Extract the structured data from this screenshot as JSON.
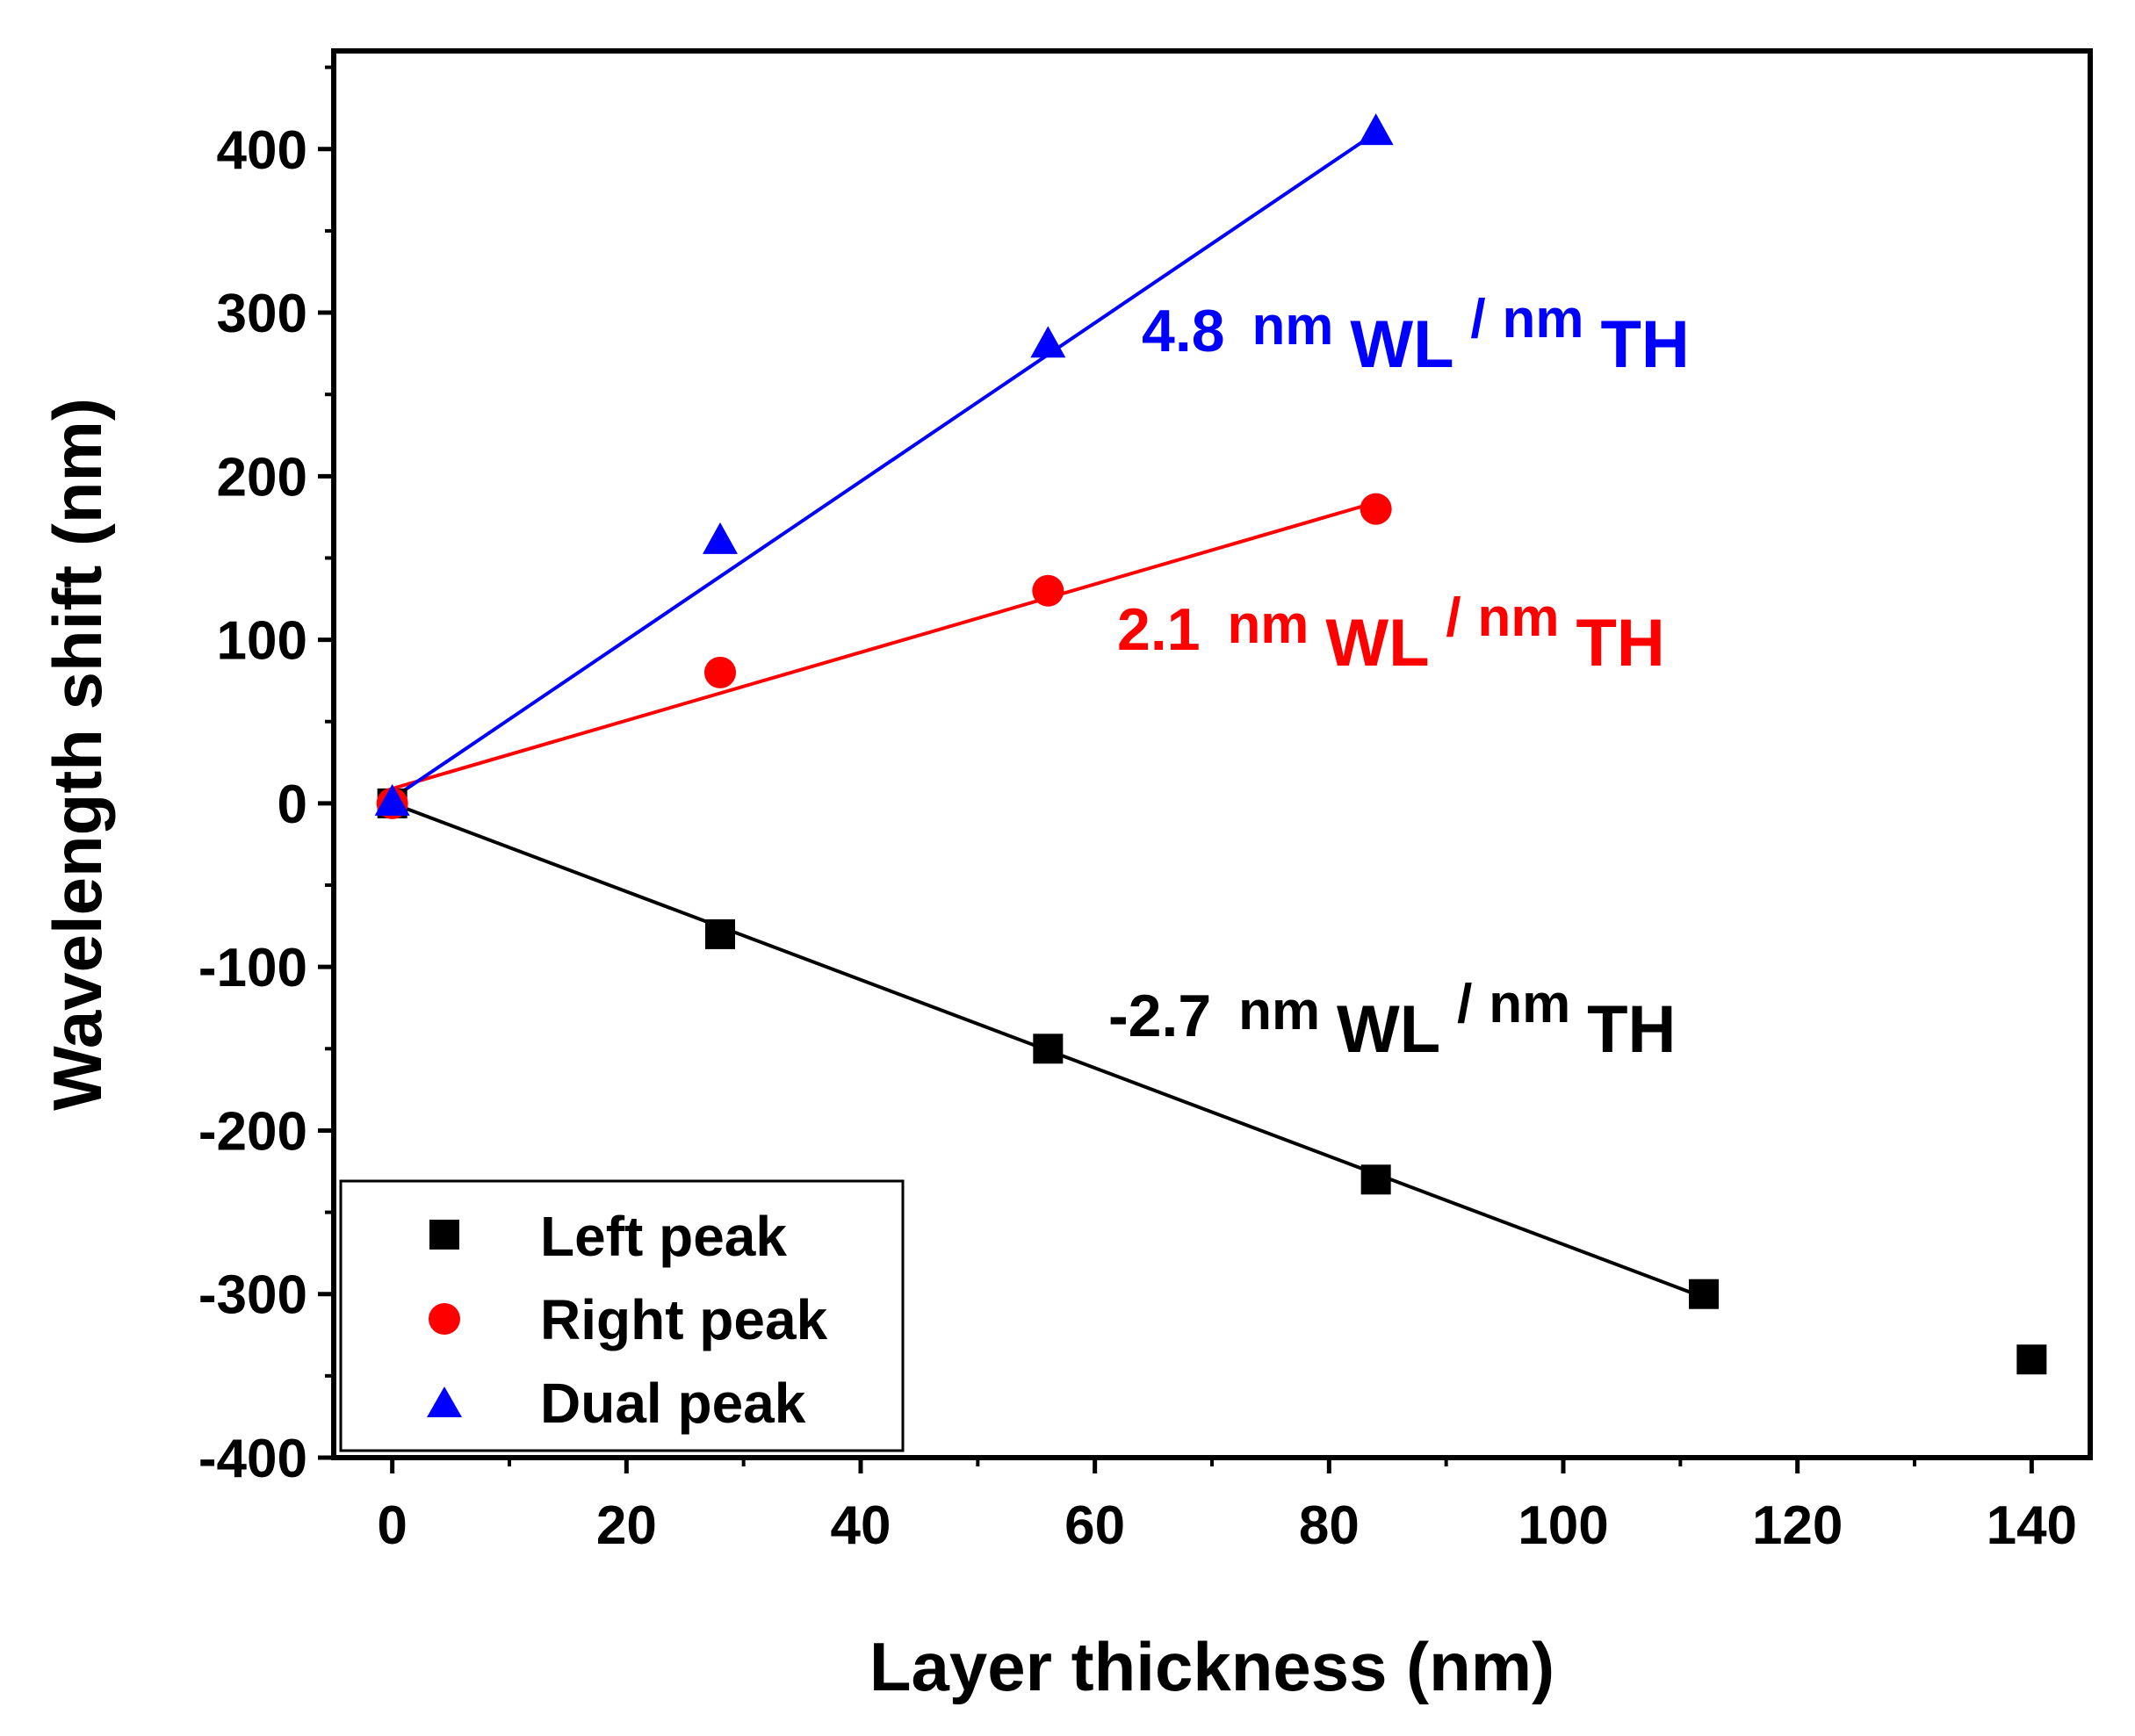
{
  "chart_data": {
    "type": "scatter",
    "title": "",
    "xlabel": "Layer thickness (nm)",
    "ylabel": "Wavelength shift (nm)",
    "xlim": [
      -5,
      145
    ],
    "ylim": [
      -400,
      460
    ],
    "x_ticks": [
      0,
      20,
      40,
      60,
      80,
      100,
      120,
      140
    ],
    "y_ticks": [
      -400,
      -300,
      -200,
      -100,
      0,
      100,
      200,
      300,
      400
    ],
    "x_tick_labels": [
      "0",
      "20",
      "40",
      "60",
      "80",
      "100",
      "120",
      "140"
    ],
    "y_tick_labels": [
      "-400",
      "-300",
      "-200",
      "-100",
      "0",
      "100",
      "200",
      "300",
      "400"
    ],
    "legend_position": "bottom-left",
    "series": [
      {
        "name": "Left peak",
        "marker": "square",
        "color": "#000000",
        "x": [
          0,
          28,
          56,
          84,
          112,
          140
        ],
        "y": [
          0,
          -80,
          -150,
          -230,
          -300,
          -340
        ],
        "fit": {
          "x_range": [
            0,
            112
          ],
          "y_range": [
            0,
            -302
          ],
          "slope_label": "-2.7"
        }
      },
      {
        "name": "Right peak",
        "marker": "circle",
        "color": "#ff0000",
        "x": [
          0,
          28,
          56,
          84
        ],
        "y": [
          0,
          80,
          130,
          180
        ],
        "fit": {
          "x_range": [
            0,
            84
          ],
          "y_range": [
            9,
            184
          ],
          "slope_label": "2.1"
        }
      },
      {
        "name": "Dual peak",
        "marker": "triangle",
        "color": "#0000ff",
        "x": [
          0,
          28,
          56,
          84
        ],
        "y": [
          0,
          160,
          280,
          410
        ],
        "fit": {
          "x_range": [
            0,
            84
          ],
          "y_range": [
            3,
            410
          ],
          "slope_label": "4.8"
        }
      }
    ],
    "annotations": [
      {
        "id": "dual",
        "value": "4.8",
        "num": "nm",
        "num_sub": "WL",
        "slash": "/",
        "den": "nm",
        "den_sub": "TH",
        "color": "#0000ff"
      },
      {
        "id": "right",
        "value": "2.1",
        "num": "nm",
        "num_sub": "WL",
        "slash": "/",
        "den": "nm",
        "den_sub": "TH",
        "color": "#ff0000"
      },
      {
        "id": "left",
        "value": "-2.7",
        "num": "nm",
        "num_sub": "WL",
        "slash": "/",
        "den": "nm",
        "den_sub": "TH",
        "color": "#000000"
      }
    ]
  }
}
